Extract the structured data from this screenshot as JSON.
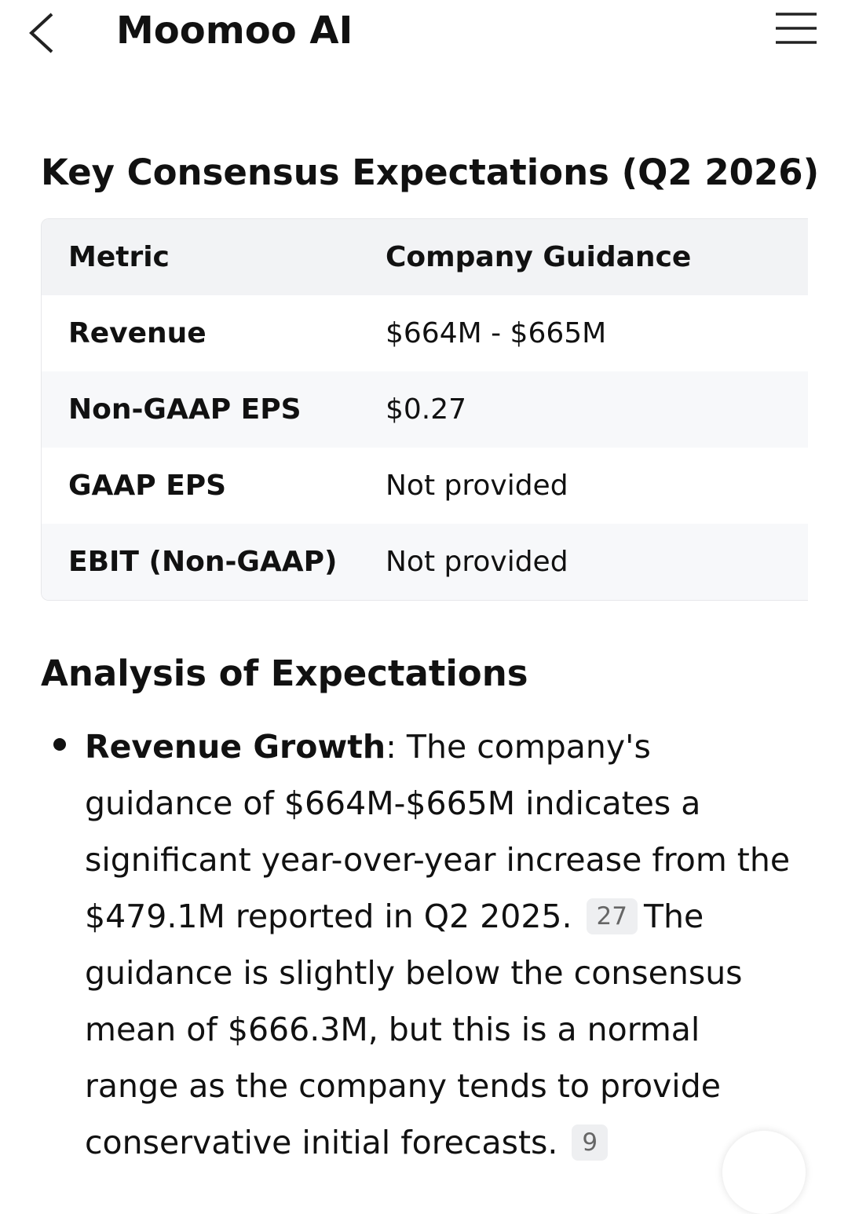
{
  "header": {
    "title": "Moomoo AI"
  },
  "sections": [
    {
      "heading": "Key Consensus Expectations (Q2 2026)",
      "table": {
        "columns": [
          "Metric",
          "Company Guidance"
        ],
        "rows": [
          [
            "Revenue",
            "$664M - $665M"
          ],
          [
            "Non-GAAP EPS",
            "$0.27"
          ],
          [
            "GAAP EPS",
            "Not provided"
          ],
          [
            "EBIT (Non-GAAP)",
            "Not provided"
          ]
        ]
      }
    },
    {
      "heading": "Analysis of Expectations",
      "bullets": [
        {
          "label": "Revenue Growth",
          "text": ": The company's guidance of $664M-$665M indicates a significant year-over-year increase from the $479.1M reported in Q2 2025.",
          "citation": "27",
          "text2": "The guidance is slightly below the consensus mean of $666.3M, but this is a normal range as the company tends to provide conservative initial forecasts.",
          "citation2": "9"
        }
      ]
    }
  ]
}
